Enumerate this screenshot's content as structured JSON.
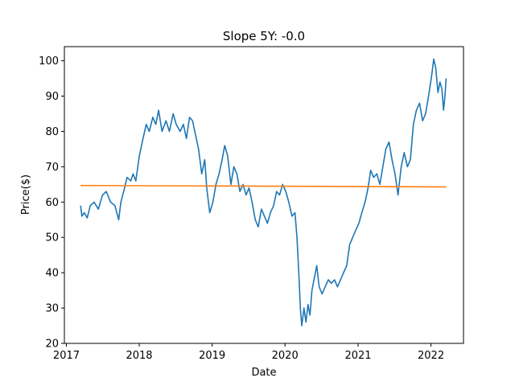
{
  "chart_data": {
    "type": "line",
    "title": "Slope 5Y: -0.0",
    "xlabel": "Date",
    "ylabel": "Price($)",
    "xlim": [
      "2016-12-22",
      "2022-06-13"
    ],
    "ylim": [
      20,
      104
    ],
    "x_ticks": [
      "2017",
      "2018",
      "2019",
      "2020",
      "2021",
      "2022"
    ],
    "y_ticks": [
      20,
      30,
      40,
      50,
      60,
      70,
      80,
      90,
      100
    ],
    "grid": false,
    "colors": {
      "price": "#1f77b4",
      "trend": "#ff7f0e"
    },
    "series": [
      {
        "values_xy": [
          [
            "2017-03-13",
            59.0
          ],
          [
            "2017-03-20",
            56.0
          ],
          [
            "2017-04-01",
            57.0
          ],
          [
            "2017-04-15",
            55.5
          ],
          [
            "2017-05-01",
            59.0
          ],
          [
            "2017-05-20",
            60.0
          ],
          [
            "2017-06-10",
            58.0
          ],
          [
            "2017-07-01",
            62.0
          ],
          [
            "2017-07-20",
            63.0
          ],
          [
            "2017-08-10",
            60.0
          ],
          [
            "2017-09-01",
            59.0
          ],
          [
            "2017-09-20",
            55.0
          ],
          [
            "2017-10-01",
            60.0
          ],
          [
            "2017-10-15",
            63.0
          ],
          [
            "2017-11-01",
            67.0
          ],
          [
            "2017-11-20",
            66.0
          ],
          [
            "2017-12-01",
            68.0
          ],
          [
            "2017-12-15",
            66.0
          ],
          [
            "2018-01-01",
            73.0
          ],
          [
            "2018-01-20",
            78.0
          ],
          [
            "2018-02-05",
            82.0
          ],
          [
            "2018-02-20",
            80.0
          ],
          [
            "2018-03-10",
            84.0
          ],
          [
            "2018-03-25",
            82.0
          ],
          [
            "2018-04-08",
            86.0
          ],
          [
            "2018-04-25",
            80.0
          ],
          [
            "2018-05-15",
            83.0
          ],
          [
            "2018-06-01",
            80.0
          ],
          [
            "2018-06-20",
            85.0
          ],
          [
            "2018-07-05",
            82.0
          ],
          [
            "2018-07-25",
            80.0
          ],
          [
            "2018-08-10",
            82.0
          ],
          [
            "2018-08-25",
            78.0
          ],
          [
            "2018-09-10",
            84.0
          ],
          [
            "2018-09-25",
            83.0
          ],
          [
            "2018-10-10",
            79.0
          ],
          [
            "2018-10-25",
            75.0
          ],
          [
            "2018-11-10",
            68.0
          ],
          [
            "2018-11-25",
            72.0
          ],
          [
            "2018-12-05",
            64.0
          ],
          [
            "2018-12-20",
            57.0
          ],
          [
            "2019-01-05",
            60.0
          ],
          [
            "2019-01-20",
            65.0
          ],
          [
            "2019-02-05",
            68.0
          ],
          [
            "2019-02-20",
            72.0
          ],
          [
            "2019-03-05",
            76.0
          ],
          [
            "2019-03-20",
            73.0
          ],
          [
            "2019-04-05",
            65.0
          ],
          [
            "2019-04-20",
            70.0
          ],
          [
            "2019-05-05",
            68.0
          ],
          [
            "2019-05-20",
            63.0
          ],
          [
            "2019-06-05",
            65.0
          ],
          [
            "2019-06-20",
            62.0
          ],
          [
            "2019-07-05",
            64.0
          ],
          [
            "2019-07-20",
            60.0
          ],
          [
            "2019-08-05",
            55.0
          ],
          [
            "2019-08-20",
            53.0
          ],
          [
            "2019-09-05",
            58.0
          ],
          [
            "2019-09-20",
            56.0
          ],
          [
            "2019-10-05",
            54.0
          ],
          [
            "2019-10-20",
            57.0
          ],
          [
            "2019-11-05",
            59.0
          ],
          [
            "2019-11-20",
            63.0
          ],
          [
            "2019-12-05",
            62.0
          ],
          [
            "2019-12-20",
            65.0
          ],
          [
            "2020-01-05",
            63.0
          ],
          [
            "2020-01-20",
            60.0
          ],
          [
            "2020-02-05",
            56.0
          ],
          [
            "2020-02-20",
            57.0
          ],
          [
            "2020-03-01",
            50.0
          ],
          [
            "2020-03-10",
            40.0
          ],
          [
            "2020-03-18",
            30.0
          ],
          [
            "2020-03-25",
            25.0
          ],
          [
            "2020-04-05",
            30.0
          ],
          [
            "2020-04-15",
            26.0
          ],
          [
            "2020-04-25",
            31.0
          ],
          [
            "2020-05-05",
            28.0
          ],
          [
            "2020-05-15",
            35.0
          ],
          [
            "2020-05-25",
            38.0
          ],
          [
            "2020-06-08",
            42.0
          ],
          [
            "2020-06-20",
            36.0
          ],
          [
            "2020-07-05",
            34.0
          ],
          [
            "2020-07-20",
            36.0
          ],
          [
            "2020-08-05",
            38.0
          ],
          [
            "2020-08-20",
            37.0
          ],
          [
            "2020-09-05",
            38.0
          ],
          [
            "2020-09-20",
            36.0
          ],
          [
            "2020-10-05",
            38.0
          ],
          [
            "2020-10-20",
            40.0
          ],
          [
            "2020-11-05",
            42.0
          ],
          [
            "2020-11-20",
            48.0
          ],
          [
            "2020-12-05",
            50.0
          ],
          [
            "2020-12-20",
            52.0
          ],
          [
            "2021-01-05",
            54.0
          ],
          [
            "2021-01-20",
            57.0
          ],
          [
            "2021-02-05",
            60.0
          ],
          [
            "2021-02-20",
            64.0
          ],
          [
            "2021-03-05",
            69.0
          ],
          [
            "2021-03-20",
            67.0
          ],
          [
            "2021-04-05",
            68.0
          ],
          [
            "2021-04-20",
            65.0
          ],
          [
            "2021-05-05",
            70.0
          ],
          [
            "2021-05-20",
            75.0
          ],
          [
            "2021-06-05",
            77.0
          ],
          [
            "2021-06-20",
            72.0
          ],
          [
            "2021-07-05",
            68.0
          ],
          [
            "2021-07-20",
            62.0
          ],
          [
            "2021-08-05",
            70.0
          ],
          [
            "2021-08-20",
            74.0
          ],
          [
            "2021-09-05",
            70.0
          ],
          [
            "2021-09-20",
            72.0
          ],
          [
            "2021-10-05",
            82.0
          ],
          [
            "2021-10-20",
            86.0
          ],
          [
            "2021-11-05",
            88.0
          ],
          [
            "2021-11-20",
            83.0
          ],
          [
            "2021-12-05",
            85.0
          ],
          [
            "2021-12-20",
            90.0
          ],
          [
            "2022-01-05",
            96.0
          ],
          [
            "2022-01-15",
            100.5
          ],
          [
            "2022-01-25",
            98.0
          ],
          [
            "2022-02-05",
            91.0
          ],
          [
            "2022-02-15",
            94.0
          ],
          [
            "2022-02-25",
            92.0
          ],
          [
            "2022-03-05",
            86.0
          ],
          [
            "2022-03-12",
            90.0
          ],
          [
            "2022-03-18",
            95.0
          ]
        ]
      },
      {
        "values_xy": [
          [
            "2017-03-13",
            64.7
          ],
          [
            "2022-03-18",
            64.3
          ]
        ]
      }
    ]
  }
}
